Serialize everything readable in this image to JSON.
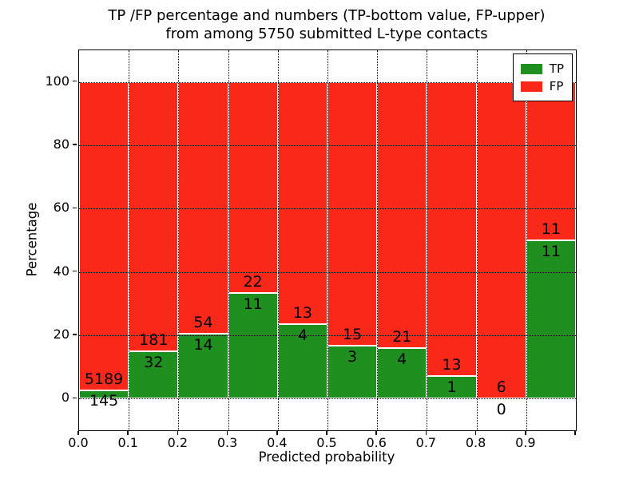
{
  "chart_data": {
    "type": "bar",
    "stacked": true,
    "title_line1": "TP /FP percentage and numbers (TP-bottom value, FP-upper)",
    "title_line2": "from among 5750 submitted L-type contacts",
    "title": "TP /FP percentage and numbers (TP-bottom value, FP-upper) from among 5750 submitted L-type contacts",
    "xlabel": "Predicted probability",
    "ylabel": "Percentage",
    "xlim": [
      0.0,
      1.0
    ],
    "ylim": [
      -10,
      110
    ],
    "x_tick_labels": [
      "0.0",
      "0.1",
      "0.2",
      "0.3",
      "0.4",
      "0.5",
      "0.6",
      "0.7",
      "0.8",
      "0.9"
    ],
    "y_tick_labels": [
      "0",
      "20",
      "40",
      "60",
      "80",
      "100"
    ],
    "y_tick_values": [
      0,
      20,
      40,
      60,
      80,
      100
    ],
    "grid": "dotted black, on",
    "legend_position": "upper right",
    "total_submitted": 5750,
    "series": [
      {
        "name": "TP",
        "color": "#1f8f1f"
      },
      {
        "name": "FP",
        "color": "#fa2819"
      }
    ],
    "bins": [
      {
        "range": "0.0-0.1",
        "tp": 145,
        "fp": 5189,
        "tp_pct": 2.7
      },
      {
        "range": "0.1-0.2",
        "tp": 32,
        "fp": 181,
        "tp_pct": 15.0
      },
      {
        "range": "0.2-0.3",
        "tp": 14,
        "fp": 54,
        "tp_pct": 20.6
      },
      {
        "range": "0.3-0.4",
        "tp": 11,
        "fp": 22,
        "tp_pct": 33.3
      },
      {
        "range": "0.4-0.5",
        "tp": 4,
        "fp": 13,
        "tp_pct": 23.5
      },
      {
        "range": "0.5-0.6",
        "tp": 3,
        "fp": 15,
        "tp_pct": 16.7
      },
      {
        "range": "0.6-0.7",
        "tp": 4,
        "fp": 21,
        "tp_pct": 16.0
      },
      {
        "range": "0.7-0.8",
        "tp": 1,
        "fp": 13,
        "tp_pct": 7.1
      },
      {
        "range": "0.8-0.9",
        "tp": 0,
        "fp": 6,
        "tp_pct": 0.0
      },
      {
        "range": "0.9-1.0",
        "tp": 11,
        "fp": 11,
        "tp_pct": 50.0
      }
    ],
    "bar_edge_color": "#ffffff",
    "axis_color": "#000000"
  }
}
